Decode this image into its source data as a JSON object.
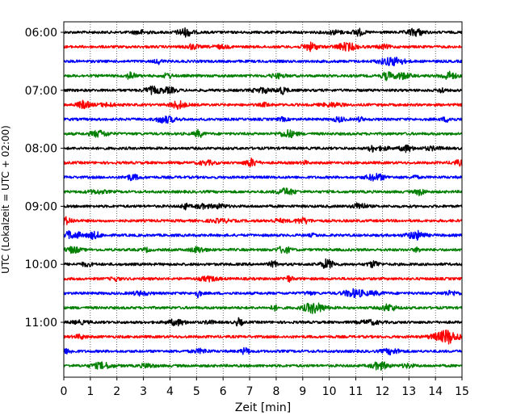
{
  "chart_data": {
    "type": "line",
    "title": "",
    "xlabel": "Zeit  [min]",
    "ylabel": "UTC (Lokalzeit = UTC + 02:00)",
    "xlim": [
      0,
      15
    ],
    "x_ticks": [
      0,
      1,
      2,
      3,
      4,
      5,
      6,
      7,
      8,
      9,
      10,
      11,
      12,
      13,
      14,
      15
    ],
    "x_tick_labels": [
      "0",
      "1",
      "2",
      "3",
      "4",
      "5",
      "6",
      "7",
      "8",
      "9",
      "10",
      "11",
      "12",
      "13",
      "14",
      "15"
    ],
    "y_ticks": [
      "06:00",
      "07:00",
      "08:00",
      "09:00",
      "10:00",
      "11:00"
    ],
    "grid": "vertical dotted",
    "trace_interval_minutes": 15,
    "traces_start": "06:00",
    "traces_count": 24,
    "color_cycle": [
      "#000000",
      "#ff0000",
      "#0000ff",
      "#007f00"
    ]
  }
}
